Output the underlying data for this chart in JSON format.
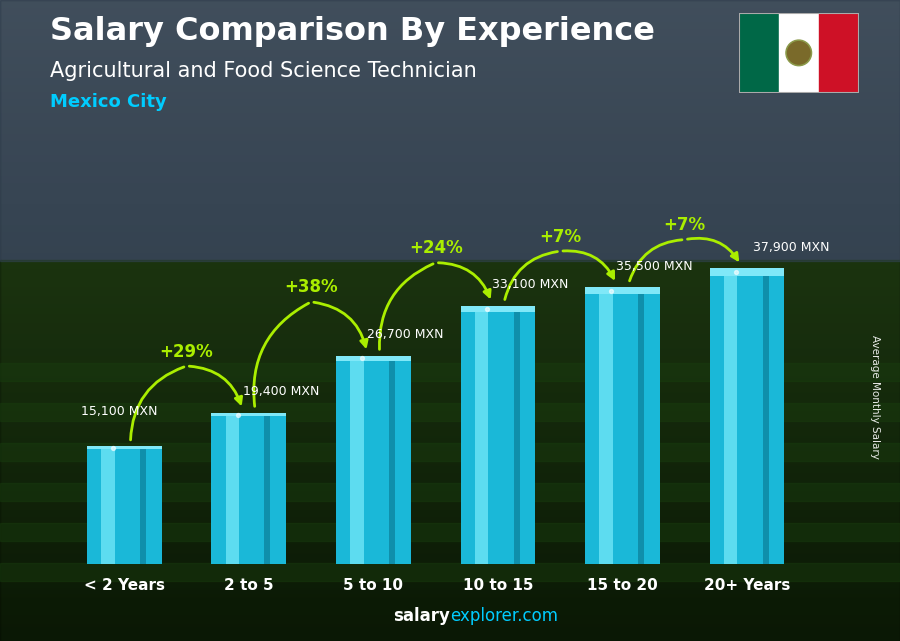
{
  "title_line1": "Salary Comparison By Experience",
  "title_line2": "Agricultural and Food Science Technician",
  "title_line3": "Mexico City",
  "categories": [
    "< 2 Years",
    "2 to 5",
    "5 to 10",
    "10 to 15",
    "15 to 20",
    "20+ Years"
  ],
  "values": [
    15100,
    19400,
    26700,
    33100,
    35500,
    37900
  ],
  "value_labels": [
    "15,100 MXN",
    "19,400 MXN",
    "26,700 MXN",
    "33,100 MXN",
    "35,500 MXN",
    "37,900 MXN"
  ],
  "pct_changes": [
    "+29%",
    "+38%",
    "+24%",
    "+7%",
    "+7%"
  ],
  "bar_color_main": "#1ab8d8",
  "bar_color_light": "#5ddcf0",
  "bar_color_dark": "#0f8fab",
  "bar_color_top": "#80e8f8",
  "pct_color": "#aaee00",
  "label_color": "#ffffff",
  "title1_color": "#ffffff",
  "title2_color": "#ffffff",
  "title3_color": "#00ccff",
  "sky_color1": "#6a7a8a",
  "sky_color2": "#3a4a5a",
  "field_color1": "#2a4a1a",
  "field_color2": "#1a3a10",
  "overlay_color": "#000000",
  "overlay_alpha": 0.35,
  "ylabel_text": "Average Monthly Salary",
  "footer_bold": "salary",
  "footer_normal": "explorer.com",
  "ylim": [
    0,
    46000
  ],
  "bar_width": 0.6
}
